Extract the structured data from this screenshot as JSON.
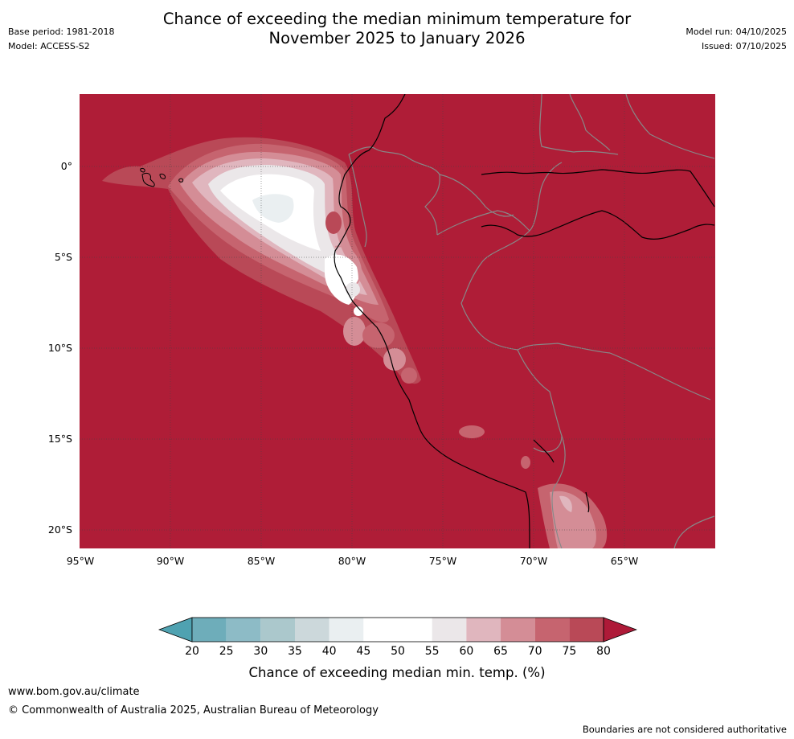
{
  "title_line1": "Chance of exceeding the median minimum temperature for",
  "title_line2": "November 2025 to January 2026",
  "base_period": "Base period: 1981-2018",
  "model": "Model: ACCESS-S2",
  "model_run": "Model run: 04/10/2025",
  "issued": "Issued: 07/10/2025",
  "lat_labels": [
    "0°",
    "5°S",
    "10°S",
    "15°S",
    "20°S"
  ],
  "lon_labels": [
    "95°W",
    "90°W",
    "85°W",
    "80°W",
    "75°W",
    "70°W",
    "65°W"
  ],
  "colorbar": {
    "ticks": [
      "20",
      "25",
      "30",
      "35",
      "40",
      "45",
      "50",
      "55",
      "60",
      "65",
      "70",
      "75",
      "80"
    ],
    "colors": [
      "#4fa2b1",
      "#6eadba",
      "#8dbbc6",
      "#abc8cc",
      "#ccd8db",
      "#eaeff1",
      "#ffffff",
      "#ffffff",
      "#ebe7e9",
      "#e0b6be",
      "#d48d96",
      "#c6646f",
      "#b94957",
      "#ae1a38"
    ],
    "label": "Chance of exceeding median min. temp. (%)"
  },
  "footer": {
    "url": "www.bom.gov.au/climate",
    "copyright": "© Commonwealth of Australia 2025, Australian Bureau of Meteorology",
    "disclaimer": "Boundaries are not considered authoritative"
  },
  "colors": {
    "background_red": "#af1d37",
    "coast": "#000000",
    "border": "#888888"
  }
}
